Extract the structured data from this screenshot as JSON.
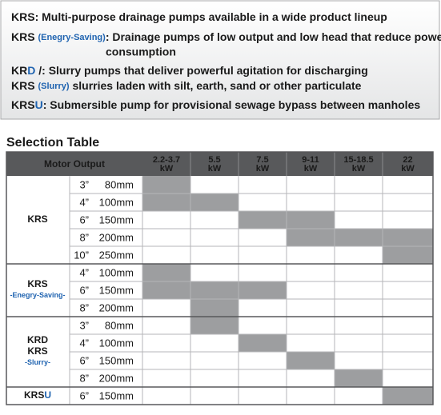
{
  "intro": {
    "lines": [
      {
        "segments": [
          {
            "text": "KRS"
          },
          {
            "text": ": Multi-purpose drainage pumps available in a wide product lineup"
          }
        ]
      },
      {
        "segments": [
          {
            "text": "KRS "
          },
          {
            "text": "(Enegry-Saving)",
            "color": "#1f63b0",
            "small": true
          },
          {
            "text": ": Drainage pumps of low output and low head that reduce power"
          }
        ],
        "wrap": "consumption"
      },
      {
        "segments": [
          {
            "text": "KR"
          },
          {
            "text": "D",
            "color": "#1f63b0"
          },
          {
            "text": " /"
          },
          {
            "text": ": Slurry pumps that deliver powerful agitation for discharging"
          }
        ]
      },
      {
        "segments": [
          {
            "text": "KRS "
          },
          {
            "text": "(Slurry)",
            "color": "#1f63b0",
            "small": true
          },
          {
            "text": " slurries laden with silt, earth, sand or other particulate"
          }
        ]
      },
      {
        "segments": [
          {
            "text": "KRS"
          },
          {
            "text": "U",
            "color": "#1f63b0"
          },
          {
            "text": ": Submersible pump for provisional sewage bypass between manholes"
          }
        ]
      }
    ]
  },
  "table": {
    "title": "Selection Table",
    "header": {
      "motor": "Motor Output",
      "columns": [
        {
          "range": "2.2-3.7",
          "unit": "kW"
        },
        {
          "range": "5.5",
          "unit": "kW"
        },
        {
          "range": "7.5",
          "unit": "kW"
        },
        {
          "range": "9-11",
          "unit": "kW"
        },
        {
          "range": "15-18.5",
          "unit": "kW"
        },
        {
          "range": "22",
          "unit": "kW"
        }
      ]
    },
    "shade_color": "#9d9ea0",
    "groups": [
      {
        "label": [
          [
            {
              "text": "KRS"
            }
          ]
        ],
        "rows": [
          {
            "inch": "3”",
            "mm": "80mm",
            "shaded": [
              true,
              false,
              false,
              false,
              false,
              false
            ]
          },
          {
            "inch": "4”",
            "mm": "100mm",
            "shaded": [
              true,
              true,
              false,
              false,
              false,
              false
            ]
          },
          {
            "inch": "6”",
            "mm": "150mm",
            "shaded": [
              false,
              false,
              true,
              true,
              false,
              false
            ]
          },
          {
            "inch": "8”",
            "mm": "200mm",
            "shaded": [
              false,
              false,
              false,
              true,
              true,
              true
            ]
          },
          {
            "inch": "10”",
            "mm": "250mm",
            "shaded": [
              false,
              false,
              false,
              false,
              false,
              true
            ]
          }
        ]
      },
      {
        "label": [
          [
            {
              "text": "KRS"
            }
          ],
          [
            {
              "text": "-Enegry-Saving-",
              "color": "#1f63b0",
              "small": true
            }
          ]
        ],
        "rows": [
          {
            "inch": "4”",
            "mm": "100mm",
            "shaded": [
              true,
              false,
              false,
              false,
              false,
              false
            ]
          },
          {
            "inch": "6”",
            "mm": "150mm",
            "shaded": [
              true,
              true,
              true,
              false,
              false,
              false
            ]
          },
          {
            "inch": "8”",
            "mm": "200mm",
            "shaded": [
              false,
              true,
              false,
              false,
              false,
              false
            ]
          }
        ]
      },
      {
        "label": [
          [
            {
              "text": "KRD"
            }
          ],
          [
            {
              "text": "KRS"
            }
          ],
          [
            {
              "text": "-Slurry-",
              "color": "#1f63b0",
              "small": true
            }
          ]
        ],
        "rows": [
          {
            "inch": "3”",
            "mm": "80mm",
            "shaded": [
              false,
              true,
              false,
              false,
              false,
              false
            ]
          },
          {
            "inch": "4”",
            "mm": "100mm",
            "shaded": [
              false,
              false,
              true,
              false,
              false,
              false
            ]
          },
          {
            "inch": "6”",
            "mm": "150mm",
            "shaded": [
              false,
              false,
              false,
              true,
              false,
              false
            ]
          },
          {
            "inch": "8”",
            "mm": "200mm",
            "shaded": [
              false,
              false,
              false,
              false,
              true,
              false
            ]
          }
        ]
      },
      {
        "label": [
          [
            {
              "text": "KRS"
            },
            {
              "text": "U",
              "color": "#1f63b0"
            }
          ]
        ],
        "rows": [
          {
            "inch": "6”",
            "mm": "150mm",
            "shaded": [
              false,
              false,
              false,
              false,
              false,
              true
            ]
          }
        ]
      }
    ]
  }
}
